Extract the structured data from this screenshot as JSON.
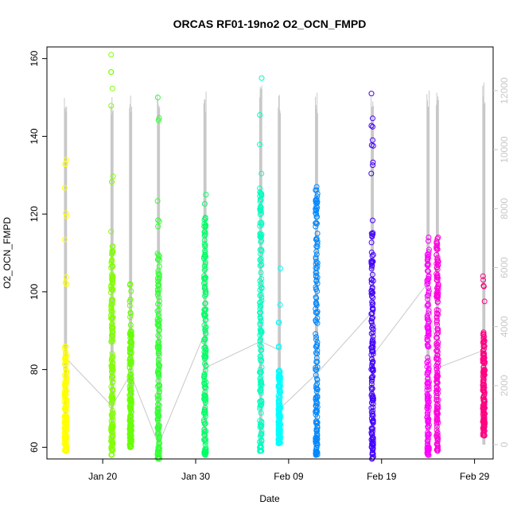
{
  "chart_data": {
    "type": "scatter",
    "title": "ORCAS RF01-19no2 O2_OCN_FMPD",
    "xlabel": "Date",
    "ylabel": "O2_OCN_FMPD",
    "x_ticks": [
      "Jan 20",
      "Jan 30",
      "Feb 09",
      "Feb 19",
      "Feb 29"
    ],
    "y_ticks": [
      "60",
      "80",
      "100",
      "120",
      "140",
      "160"
    ],
    "y_right_ticks": [
      "0",
      "2000",
      "4000",
      "6000",
      "8000",
      "10000",
      "12000"
    ],
    "ylim": [
      57,
      163
    ],
    "y_right_lim": [
      0,
      12000
    ],
    "x_start": "2016-01-14",
    "x_end": "2016-03-02",
    "grid": false,
    "right_axis_color": "#c8c8c8",
    "flights": [
      {
        "date": "2016-01-16",
        "color": "#ffff00",
        "y_range": [
          59,
          134
        ],
        "dense_range": [
          59,
          86
        ],
        "trace_top": 11800
      },
      {
        "date": "2016-01-21",
        "color": "#80ff00",
        "y_range": [
          58,
          161
        ],
        "dense_range": [
          58,
          112
        ],
        "trace_top": 11800
      },
      {
        "date": "2016-01-23",
        "color": "#66ff00",
        "y_range": [
          60,
          102
        ],
        "dense_range": [
          60,
          90
        ],
        "trace_top": 12000
      },
      {
        "date": "2016-01-26",
        "color": "#33ff33",
        "y_range": [
          57,
          150
        ],
        "dense_range": [
          57,
          110
        ],
        "trace_top": 12200
      },
      {
        "date": "2016-01-31",
        "color": "#00ff66",
        "y_range": [
          58,
          125
        ],
        "dense_range": [
          58,
          120
        ],
        "trace_top": 12000
      },
      {
        "date": "2016-02-06",
        "color": "#00ffc0",
        "y_range": [
          59,
          155
        ],
        "dense_range": [
          59,
          127
        ],
        "trace_top": 12200
      },
      {
        "date": "2016-02-08",
        "color": "#00ffff",
        "y_range": [
          61,
          106
        ],
        "dense_range": [
          61,
          80
        ],
        "trace_top": 12000
      },
      {
        "date": "2016-02-12",
        "color": "#0088ff",
        "y_range": [
          58,
          127
        ],
        "dense_range": [
          58,
          127
        ],
        "trace_top": 12000
      },
      {
        "date": "2016-02-18",
        "color": "#4400ff",
        "y_range": [
          57,
          151
        ],
        "dense_range": [
          57,
          116
        ],
        "trace_top": 12000
      },
      {
        "date": "2016-02-24",
        "color": "#ff00ff",
        "y_range": [
          58,
          114
        ],
        "dense_range": [
          58,
          114
        ],
        "trace_top": 12200
      },
      {
        "date": "2016-02-25",
        "color": "#ff00dd",
        "y_range": [
          59,
          114
        ],
        "dense_range": [
          59,
          114
        ],
        "trace_top": 12000
      },
      {
        "date": "2016-03-01",
        "color": "#ff0080",
        "y_range": [
          63,
          104
        ],
        "dense_range": [
          63,
          90
        ],
        "trace_top": 12400
      }
    ],
    "connector_right_axis": [
      {
        "date": "2016-01-16",
        "value": 2950
      },
      {
        "date": "2016-01-21",
        "value": 1300
      },
      {
        "date": "2016-01-23",
        "value": 2400
      },
      {
        "date": "2016-01-26",
        "value": 0
      },
      {
        "date": "2016-01-31",
        "value": 3800
      },
      {
        "date": "2016-01-31",
        "value": 2600
      },
      {
        "date": "2016-02-06",
        "value": 3500
      },
      {
        "date": "2016-02-08",
        "value": 3200
      },
      {
        "date": "2016-02-08",
        "value": 1200
      },
      {
        "date": "2016-02-12",
        "value": 2400
      },
      {
        "date": "2016-02-18",
        "value": 4500
      },
      {
        "date": "2016-02-18",
        "value": 3000
      },
      {
        "date": "2016-02-24",
        "value": 5500
      },
      {
        "date": "2016-02-25",
        "value": 2600
      },
      {
        "date": "2016-03-01",
        "value": 3200
      }
    ]
  }
}
